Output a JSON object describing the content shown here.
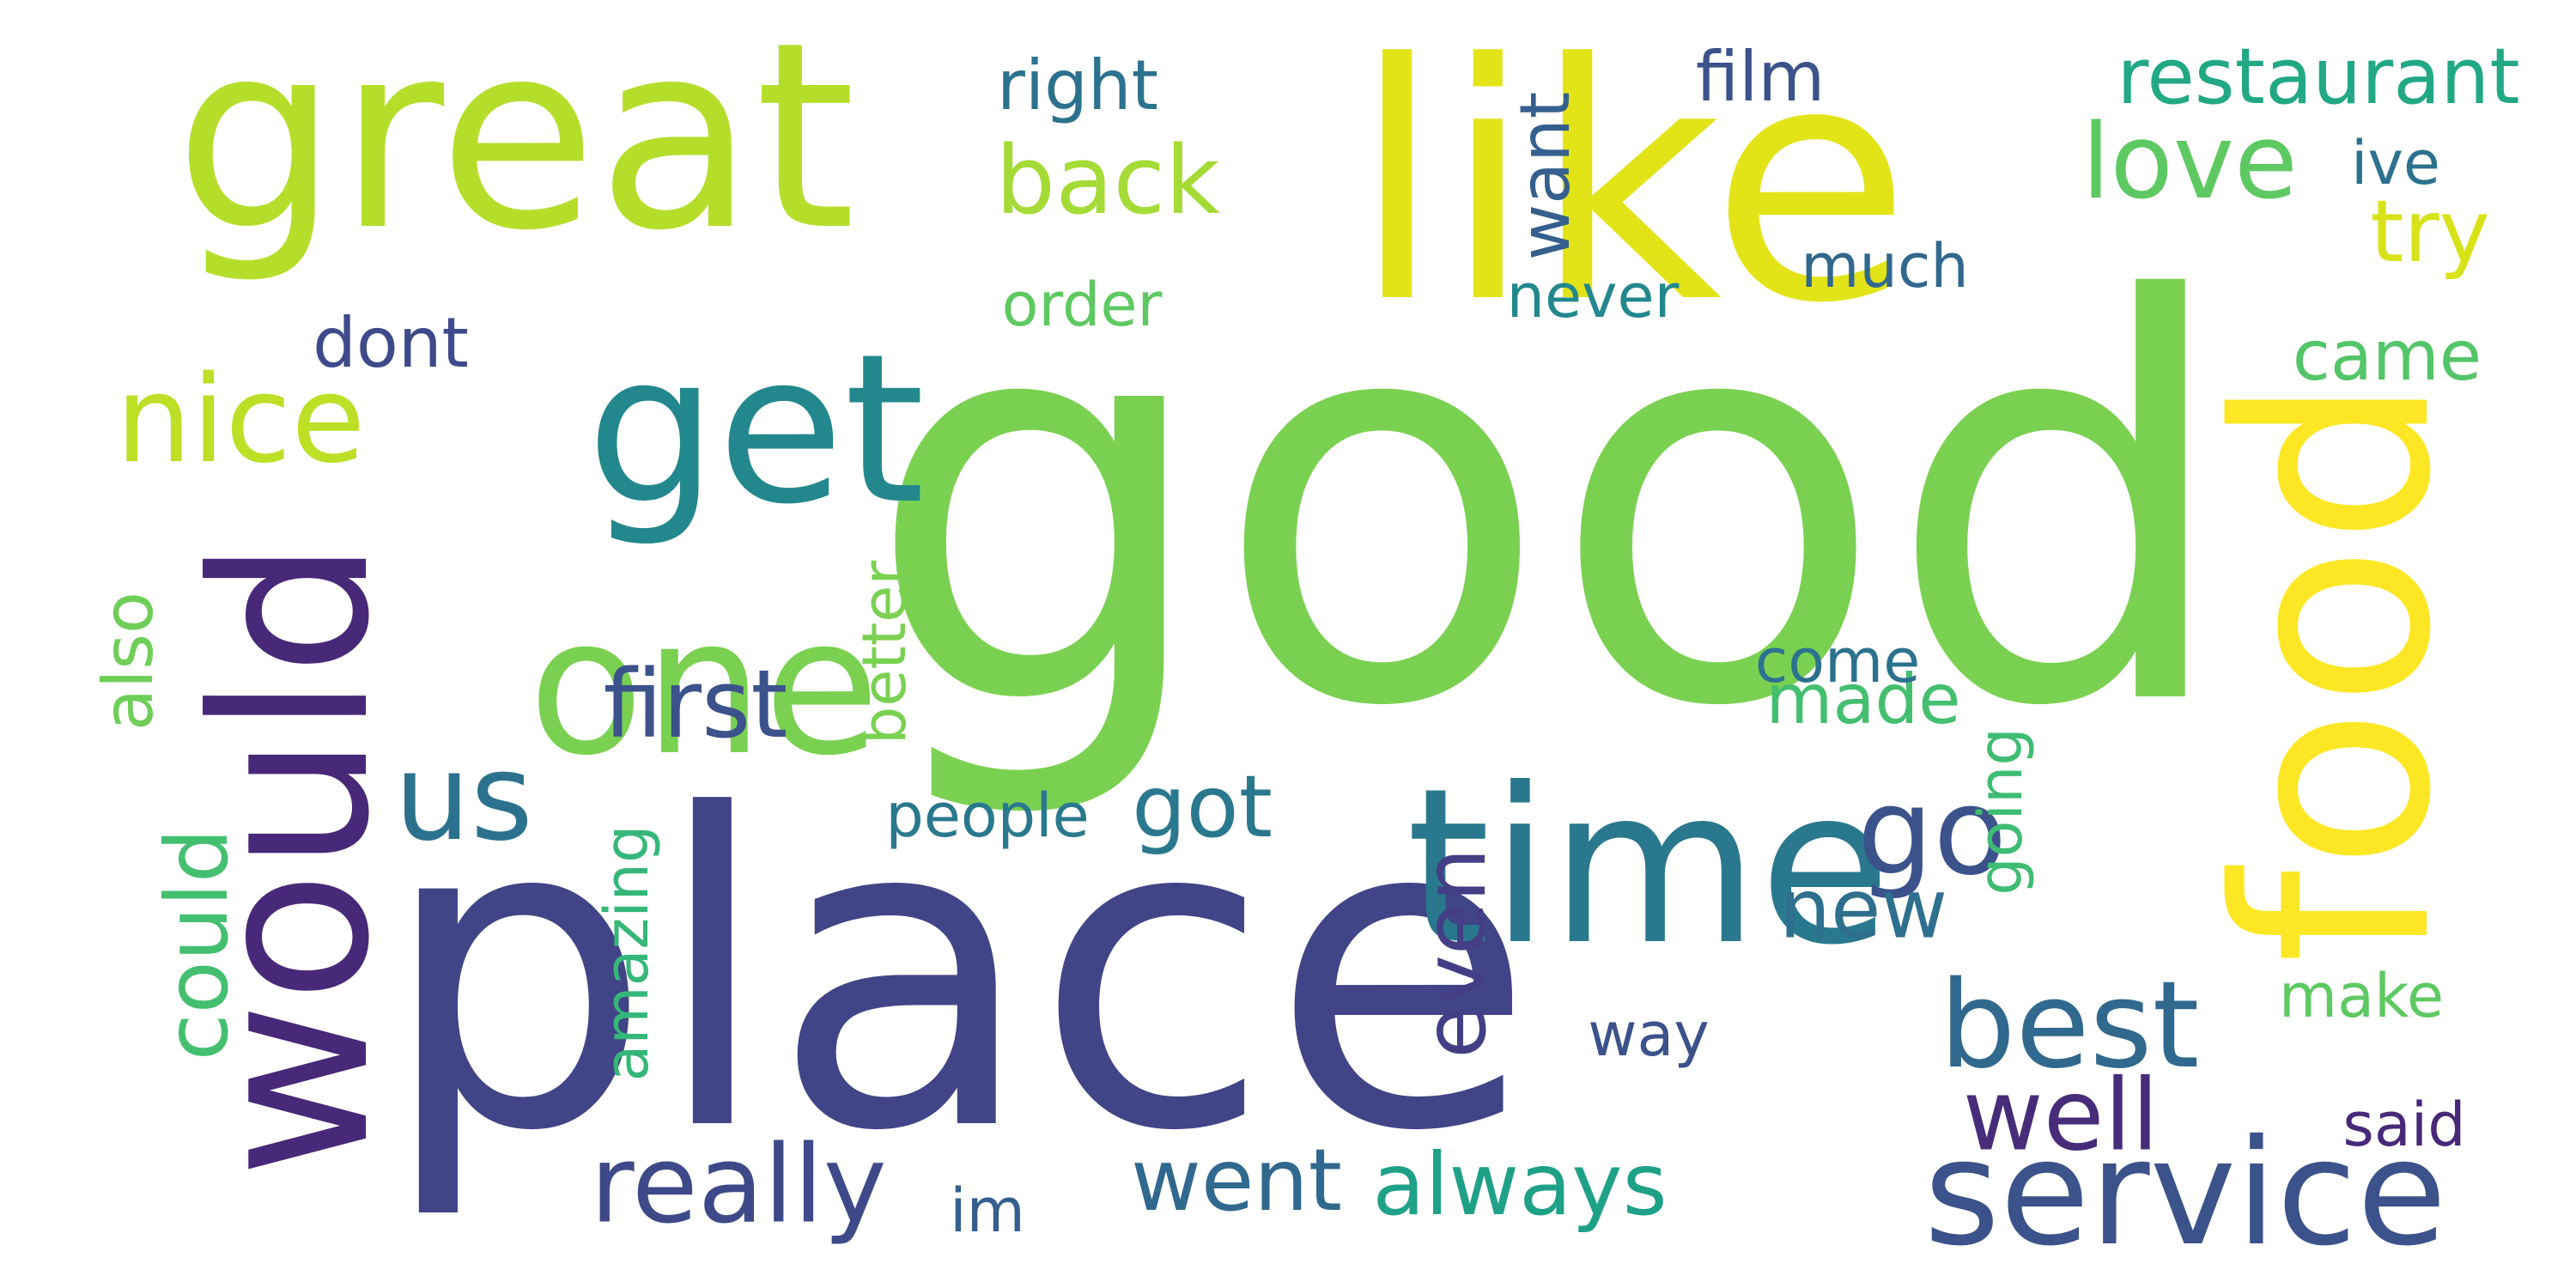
{
  "palette": {
    "background": "#ffffff",
    "colors": [
      "#440154",
      "#482878",
      "#3e4989",
      "#31688e",
      "#26828e",
      "#1f9e89",
      "#35b779",
      "#6ece58",
      "#b5de2b",
      "#fde725"
    ]
  },
  "words": [
    {
      "text": "good",
      "color": "#7ad151"
    },
    {
      "text": "place",
      "color": "#414487"
    },
    {
      "text": "like",
      "color": "#e3e418"
    },
    {
      "text": "great",
      "color": "#b5de2b"
    },
    {
      "text": "food",
      "color": "#fde725"
    },
    {
      "text": "would",
      "color": "#482878"
    },
    {
      "text": "time",
      "color": "#2a788e"
    },
    {
      "text": "get",
      "color": "#23888e"
    },
    {
      "text": "one",
      "color": "#7ad151"
    },
    {
      "text": "service",
      "color": "#3b528b"
    },
    {
      "text": "best",
      "color": "#31688e"
    },
    {
      "text": "nice",
      "color": "#bddf26"
    },
    {
      "text": "us",
      "color": "#2c728e"
    },
    {
      "text": "love",
      "color": "#5ec962"
    },
    {
      "text": "go",
      "color": "#3b528b"
    },
    {
      "text": "really",
      "color": "#3e4989"
    },
    {
      "text": "restaurant",
      "color": "#22a884"
    },
    {
      "text": "back",
      "color": "#a5db36"
    },
    {
      "text": "first",
      "color": "#3b528b"
    },
    {
      "text": "could",
      "color": "#44bf70"
    },
    {
      "text": "well",
      "color": "#472c7a"
    },
    {
      "text": "new",
      "color": "#2e6f8e"
    },
    {
      "text": "always",
      "color": "#1fa188"
    },
    {
      "text": "went",
      "color": "#31688e"
    },
    {
      "text": "got",
      "color": "#2a788e"
    },
    {
      "text": "even",
      "color": "#433e85"
    },
    {
      "text": "film",
      "color": "#3b528b"
    },
    {
      "text": "came",
      "color": "#54c568"
    },
    {
      "text": "try",
      "color": "#d8e219"
    },
    {
      "text": "right",
      "color": "#2c728e"
    },
    {
      "text": "want",
      "color": "#355f8d"
    },
    {
      "text": "also",
      "color": "#6ece58"
    },
    {
      "text": "made",
      "color": "#44bf70"
    },
    {
      "text": "people",
      "color": "#2a788e"
    },
    {
      "text": "dont",
      "color": "#3e4a89"
    },
    {
      "text": "much",
      "color": "#31688e"
    },
    {
      "text": "order",
      "color": "#5ec962"
    },
    {
      "text": "never",
      "color": "#23888e"
    },
    {
      "text": "come",
      "color": "#2c728e"
    },
    {
      "text": "better",
      "color": "#7ad151"
    },
    {
      "text": "amazing",
      "color": "#35b779"
    },
    {
      "text": "im",
      "color": "#355f8d"
    },
    {
      "text": "way",
      "color": "#3b528b"
    },
    {
      "text": "make",
      "color": "#5ec962"
    },
    {
      "text": "said",
      "color": "#482878"
    },
    {
      "text": "going",
      "color": "#3fbc73"
    },
    {
      "text": "ive",
      "color": "#2c728e"
    }
  ]
}
